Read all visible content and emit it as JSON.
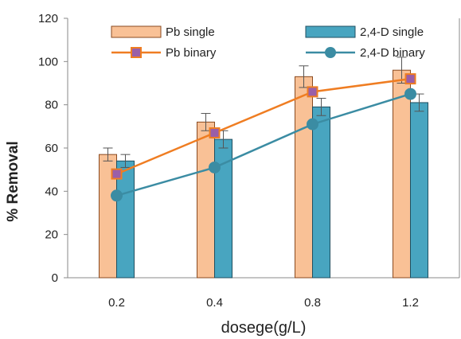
{
  "chart_data": {
    "type": "bar",
    "categories": [
      "0.2",
      "0.4",
      "0.8",
      "1.2"
    ],
    "xlabel": "dosege(g/L)",
    "ylabel": "% Removal",
    "ylim": [
      0,
      120
    ],
    "yticks": [
      0,
      20,
      40,
      60,
      80,
      100,
      120
    ],
    "grid": false,
    "legend": "top",
    "bar_series": [
      {
        "name": "Pb single",
        "values": [
          57,
          72,
          93,
          96
        ],
        "errors": [
          3,
          4,
          5,
          6
        ],
        "color": "#f9c196",
        "stroke": "#8a4a20"
      },
      {
        "name": "2,4-D single",
        "values": [
          54,
          64,
          79,
          81
        ],
        "errors": [
          3,
          4,
          4,
          4
        ],
        "color": "#48a5c0",
        "stroke": "#1f4f60"
      }
    ],
    "line_series": [
      {
        "name": "Pb binary",
        "values": [
          48,
          67,
          86,
          92
        ],
        "color": "#ef7d22",
        "marker": "square",
        "marker_fill": "#9a5fa8"
      },
      {
        "name": "2,4-D binary",
        "values": [
          38,
          51,
          71,
          85
        ],
        "color": "#3b8ca3",
        "marker": "circle",
        "marker_fill": "#3b8ca3"
      }
    ]
  }
}
